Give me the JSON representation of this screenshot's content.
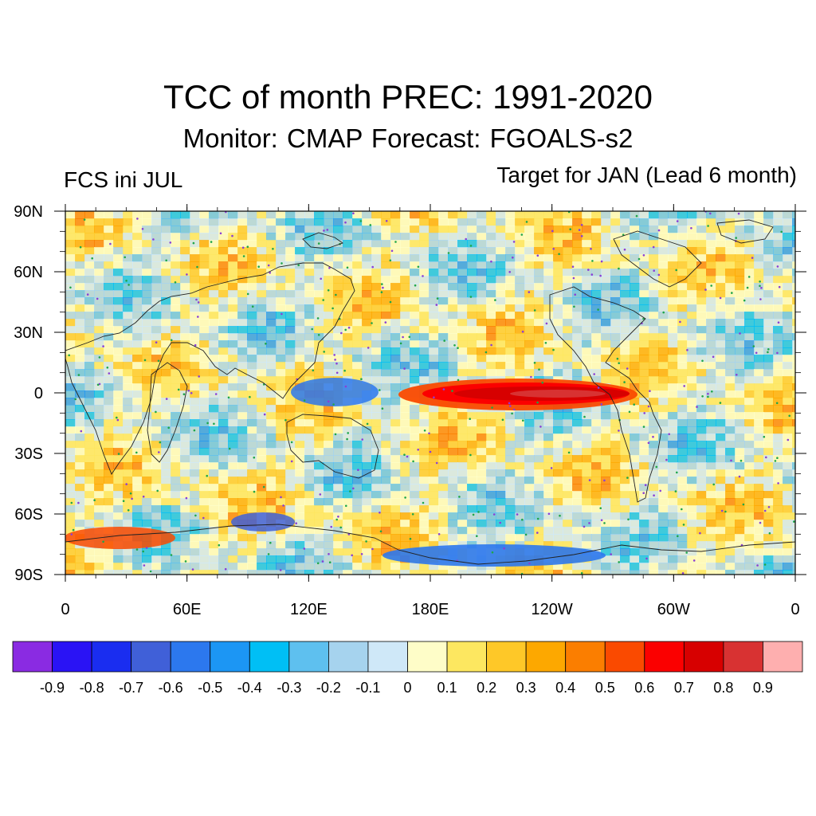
{
  "title": "TCC of month PREC: 1991-2020",
  "subtitle": "Monitor: CMAP   Forecast: FGOALS-s2",
  "left_label": "FCS ini JUL",
  "right_label": "Target for JAN (Lead 6 month)",
  "map": {
    "lon_ticks": [
      "0",
      "60E",
      "120E",
      "180E",
      "120W",
      "60W",
      "0"
    ],
    "lat_ticks": [
      "90N",
      "60N",
      "30N",
      "0",
      "30S",
      "60S",
      "90S"
    ],
    "projection": "cylindrical equidistant",
    "significance_marker": "dots"
  },
  "colorbar": {
    "colors": [
      "#8a2be2",
      "#2a13f5",
      "#1a2df0",
      "#4060d8",
      "#2c78ee",
      "#1c96f4",
      "#00bff5",
      "#5ec0ef",
      "#a6d3ee",
      "#cfe8f8",
      "#fefdc8",
      "#fde760",
      "#fec828",
      "#fda800",
      "#fb7e00",
      "#fa4a00",
      "#fb0000",
      "#d70000",
      "#d83232",
      "#feafaf"
    ],
    "labels": [
      "-0.9",
      "-0.8",
      "-0.7",
      "-0.6",
      "-0.5",
      "-0.4",
      "-0.3",
      "-0.2",
      "-0.1",
      "0",
      "0.1",
      "0.2",
      "0.3",
      "0.4",
      "0.5",
      "0.6",
      "0.7",
      "0.8",
      "0.9"
    ]
  }
}
